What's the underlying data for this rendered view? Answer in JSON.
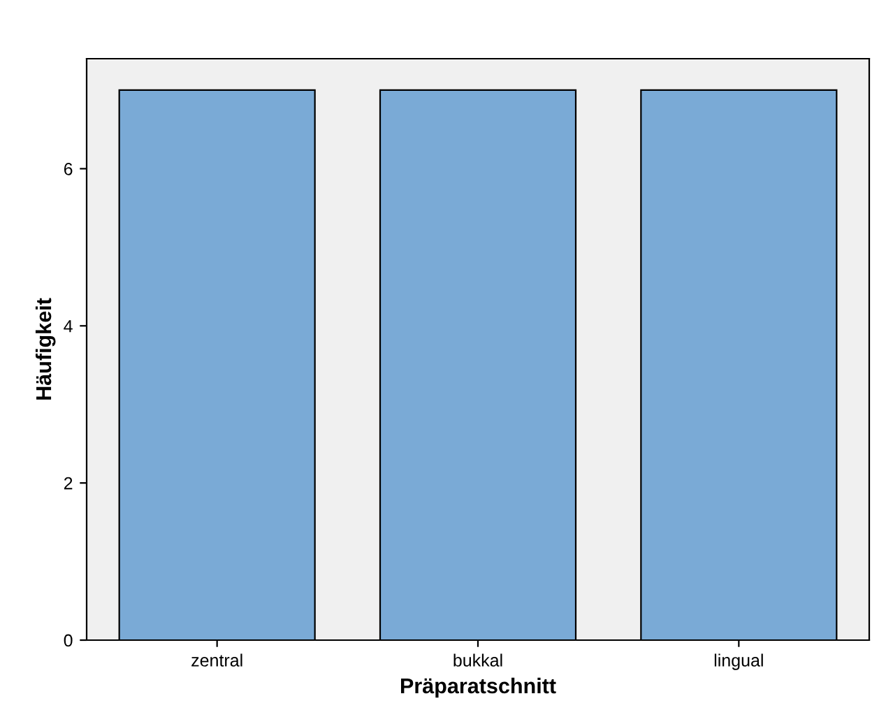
{
  "chart_data": {
    "type": "bar",
    "xlabel": "Präparatschnitt",
    "ylabel": "Häufigkeit",
    "categories": [
      "zentral",
      "bukkal",
      "lingual"
    ],
    "values": [
      7,
      7,
      7
    ],
    "color": "#7aaad6",
    "ylim": [
      0,
      7.4
    ],
    "yticks": [
      0,
      2,
      4,
      6
    ],
    "grid": false,
    "legend": false
  }
}
